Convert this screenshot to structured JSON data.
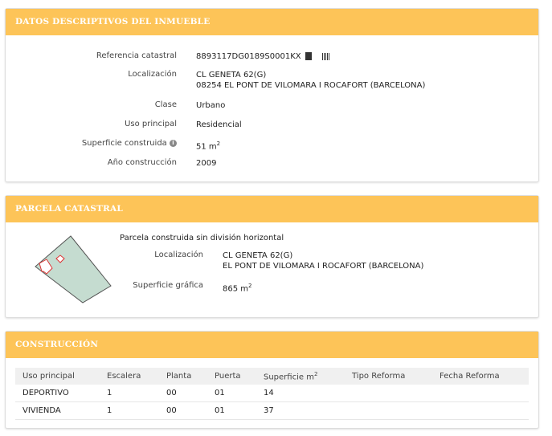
{
  "datos": {
    "title": "DATOS DESCRIPTIVOS DEL INMUEBLE",
    "referencia_label": "Referencia catastral",
    "referencia": "8893117DG0189S0001KX",
    "localizacion_label": "Localización",
    "loc1": "CL GENETA 62(G)",
    "loc2": "08254 EL PONT DE VILOMARA I ROCAFORT (BARCELONA)",
    "clase_label": "Clase",
    "clase": "Urbano",
    "uso_label": "Uso principal",
    "uso": "Residencial",
    "superficie_label": "Superficie construida",
    "superficie": "51 m",
    "superficie_unit_exp": "2",
    "anio_label": "Año construcción",
    "anio": "2009"
  },
  "parcela": {
    "title": "PARCELA CATASTRAL",
    "tipo": "Parcela construida sin división horizontal",
    "localizacion_label": "Localización",
    "loc1": "CL GENETA 62(G)",
    "loc2": "EL PONT DE VILOMARA I ROCAFORT (BARCELONA)",
    "superficie_label": "Superficie gráfica",
    "superficie": "865 m",
    "superficie_unit_exp": "2"
  },
  "construccion": {
    "title": "CONSTRUCCIÓN",
    "headers": [
      "Uso principal",
      "Escalera",
      "Planta",
      "Puerta",
      "Superficie m",
      "Tipo Reforma",
      "Fecha Reforma"
    ],
    "sup_exp": "2",
    "rows": [
      [
        "DEPORTIVO",
        "1",
        "00",
        "01",
        "14",
        "",
        ""
      ],
      [
        "VIVIENDA",
        "1",
        "00",
        "01",
        "37",
        "",
        ""
      ]
    ]
  },
  "colors": {
    "header": "#fdc458"
  }
}
